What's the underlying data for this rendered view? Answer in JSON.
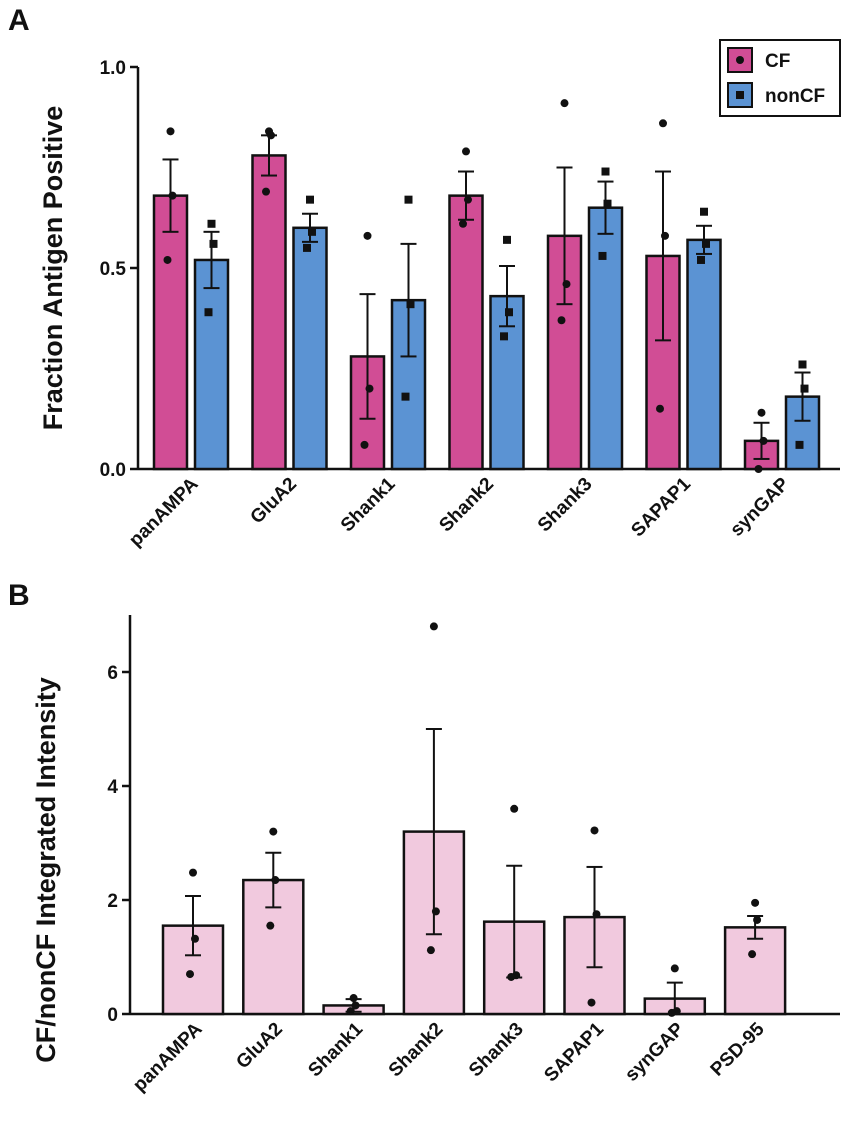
{
  "colors": {
    "cf": "#d14d95",
    "noncf": "#5b93d3",
    "ratio": "#f1c9de",
    "stroke": "#111111"
  },
  "chart_data": [
    {
      "panel": "A",
      "type": "bar",
      "ylabel": "Fraction Antigen Positive",
      "ylim": [
        0,
        1.0
      ],
      "yticks": [
        0.0,
        0.5,
        1.0
      ],
      "ytick_labels": [
        "0.0",
        "0.5",
        "1.0"
      ],
      "legend": {
        "position": "top-right",
        "entries": [
          "CF",
          "nonCF"
        ]
      },
      "categories": [
        "panAMPA",
        "GluA2",
        "Shank1",
        "Shank2",
        "Shank3",
        "SAPAP1",
        "synGAP"
      ],
      "series": [
        {
          "name": "CF",
          "values": [
            0.68,
            0.78,
            0.28,
            0.68,
            0.58,
            0.53,
            0.07
          ],
          "sem": [
            0.09,
            0.05,
            0.155,
            0.06,
            0.17,
            0.21,
            0.045
          ],
          "points": [
            [
              0.84,
              0.68,
              0.52
            ],
            [
              0.84,
              0.83,
              0.69
            ],
            [
              0.58,
              0.2,
              0.06
            ],
            [
              0.79,
              0.67,
              0.61
            ],
            [
              0.91,
              0.46,
              0.37
            ],
            [
              0.86,
              0.58,
              0.15
            ],
            [
              0.14,
              0.07,
              0.0
            ]
          ]
        },
        {
          "name": "nonCF",
          "values": [
            0.52,
            0.6,
            0.42,
            0.43,
            0.65,
            0.57,
            0.18
          ],
          "sem": [
            0.07,
            0.035,
            0.14,
            0.075,
            0.065,
            0.035,
            0.06
          ],
          "points": [
            [
              0.61,
              0.56,
              0.39
            ],
            [
              0.67,
              0.59,
              0.55
            ],
            [
              0.67,
              0.41,
              0.18
            ],
            [
              0.57,
              0.39,
              0.33
            ],
            [
              0.74,
              0.66,
              0.53
            ],
            [
              0.64,
              0.56,
              0.52
            ],
            [
              0.26,
              0.2,
              0.06
            ]
          ]
        }
      ]
    },
    {
      "panel": "B",
      "type": "bar",
      "ylabel": "CF/nonCF Integrated Intensity",
      "ylim": [
        0,
        7
      ],
      "yticks": [
        0,
        2,
        4,
        6
      ],
      "ytick_labels": [
        "0",
        "2",
        "4",
        "6"
      ],
      "categories": [
        "panAMPA",
        "GluA2",
        "Shank1",
        "Shank2",
        "Shank3",
        "SAPAP1",
        "synGAP",
        "PSD-95"
      ],
      "series": [
        {
          "name": "CF/nonCF",
          "values": [
            1.55,
            2.35,
            0.15,
            3.2,
            1.62,
            1.7,
            0.27,
            1.52
          ],
          "sem": [
            0.52,
            0.48,
            0.11,
            1.8,
            0.98,
            0.88,
            0.28,
            0.2
          ],
          "points": [
            [
              2.48,
              1.32,
              0.7
            ],
            [
              3.2,
              2.35,
              1.55
            ],
            [
              0.28,
              0.15,
              0.05
            ],
            [
              6.8,
              1.8,
              1.12
            ],
            [
              3.6,
              0.68,
              0.65
            ],
            [
              3.22,
              1.75,
              0.2
            ],
            [
              0.8,
              0.05,
              0.02
            ],
            [
              1.95,
              1.65,
              1.05
            ]
          ]
        }
      ]
    }
  ]
}
